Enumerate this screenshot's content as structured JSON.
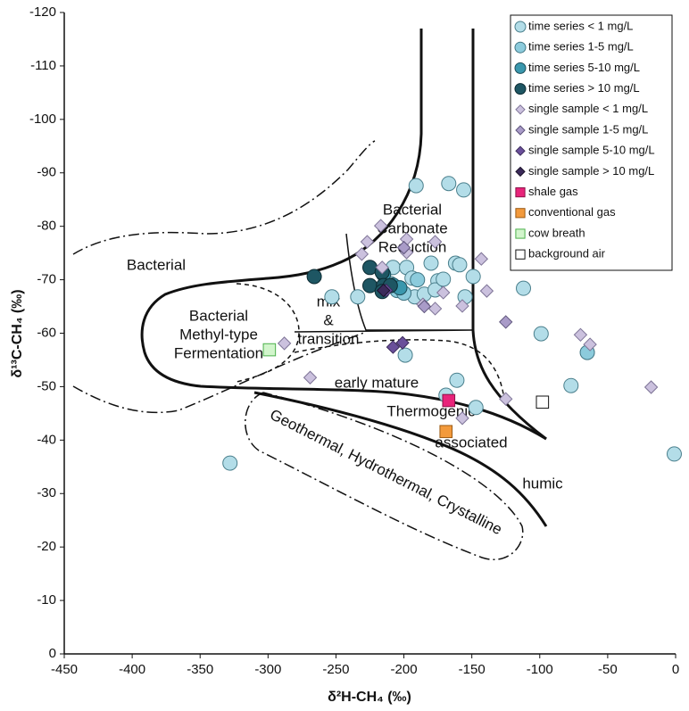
{
  "chart_data": {
    "type": "scatter",
    "x_label": "δ²H-CH₄ (‰)",
    "y_label": "δ¹³C-CH₄ (‰)",
    "xlim": [
      -450,
      0
    ],
    "xticks": [
      -450,
      -400,
      -350,
      -300,
      -250,
      -200,
      -150,
      -100,
      -50,
      0
    ],
    "ylim": [
      0,
      -120
    ],
    "yticks": [
      0,
      -10,
      -20,
      -30,
      -40,
      -50,
      -60,
      -70,
      -80,
      -90,
      -100,
      -110,
      -120
    ],
    "legend": "upper right",
    "annotations": [
      [
        "Bacterial"
      ],
      [
        "Bacterial",
        "Methyl-type",
        "Fermentation"
      ],
      [
        "mix",
        "&",
        "transition"
      ],
      [
        "Bacterial",
        "Carbonate",
        "Reduction"
      ],
      [
        "early mature"
      ],
      [
        "Thermogenic"
      ],
      [
        "associated"
      ],
      [
        "humic"
      ],
      [
        "Geothermal, Hydrothermal, Crystalline"
      ]
    ],
    "series": [
      {
        "name": "time series < 1 mg/L",
        "marker": "circle",
        "color": "#b3dde8",
        "stroke": "#4a7f8c",
        "x": [
          -191,
          -167,
          -156,
          -253,
          -234,
          -208,
          -198,
          -194,
          -210,
          -192,
          -185,
          -180,
          -175,
          -177,
          -171,
          -162,
          -159,
          -155,
          -149,
          -112,
          -199,
          -161,
          -169,
          -147,
          -99,
          -77,
          -1,
          -328
        ],
        "y": [
          -87.6,
          -88,
          -86.8,
          -66.8,
          -66.8,
          -72.3,
          -72.3,
          -70.3,
          -69.3,
          -66.8,
          -67.3,
          -73.1,
          -69.8,
          -68.1,
          -70.1,
          -73.1,
          -72.8,
          -66.8,
          -70.6,
          -68.4,
          -55.9,
          -51.2,
          -48.4,
          -46.1,
          -59.9,
          -50.2,
          -37.4,
          -35.7
        ]
      },
      {
        "name": "time series 1-5 mg/L",
        "marker": "circle",
        "color": "#8ccbdc",
        "stroke": "#3f7482",
        "x": [
          -205,
          -200,
          -190,
          -65
        ],
        "y": [
          -68,
          -67.5,
          -70,
          -56.4
        ]
      },
      {
        "name": "time series 5-10 mg/L",
        "marker": "circle",
        "color": "#3a97ad",
        "stroke": "#1d4d59",
        "x": [
          -208,
          -203,
          -215
        ],
        "y": [
          -69,
          -68.5,
          -71
        ]
      },
      {
        "name": "time series > 10 mg/L",
        "marker": "circle",
        "color": "#1e5663",
        "stroke": "#0b2a31",
        "x": [
          -266,
          -225,
          -225,
          -216,
          -215,
          -210,
          -216
        ],
        "y": [
          -70.6,
          -72.3,
          -68.9,
          -71.4,
          -68.9,
          -68.9,
          -67.8
        ]
      },
      {
        "name": "single sample < 1 mg/L",
        "marker": "diamond",
        "color": "#cbc1de",
        "stroke": "#7d7396",
        "x": [
          -227,
          -217,
          -198,
          -177,
          -231,
          -198,
          -216,
          -143,
          -139,
          -186,
          -177,
          -157,
          -171,
          -70,
          -63,
          -125,
          -18,
          -288,
          -269,
          -157
        ],
        "y": [
          -77.1,
          -80.1,
          -77.6,
          -77.1,
          -74.8,
          -75.1,
          -72.3,
          -73.9,
          -67.9,
          -65.4,
          -64.6,
          -65.1,
          -67.6,
          -59.7,
          -57.9,
          -47.7,
          -49.9,
          -58.1,
          -51.7,
          -44.1
        ]
      },
      {
        "name": "single sample 1-5 mg/L",
        "marker": "diamond",
        "color": "#a99bc8",
        "stroke": "#5f557c",
        "x": [
          -200,
          -185,
          -125
        ],
        "y": [
          -76,
          -65,
          -62.1
        ]
      },
      {
        "name": "single sample 5-10 mg/L",
        "marker": "diamond",
        "color": "#6a4f9a",
        "stroke": "#3b2a5a",
        "x": [
          -208,
          -201,
          -213
        ],
        "y": [
          -57.4,
          -58.2,
          -68
        ]
      },
      {
        "name": "single sample > 10 mg/L",
        "marker": "diamond",
        "color": "#3b2a5a",
        "stroke": "#1a1128",
        "x": [
          -215
        ],
        "y": [
          -68
        ]
      },
      {
        "name": "shale gas",
        "marker": "square",
        "color": "#e8247a",
        "stroke": "#8a1248",
        "x": [
          -167
        ],
        "y": [
          -47.4
        ]
      },
      {
        "name": "conventional gas",
        "marker": "square",
        "color": "#f39a3c",
        "stroke": "#9a5a14",
        "x": [
          -169
        ],
        "y": [
          -41.6
        ]
      },
      {
        "name": "cow breath",
        "marker": "square",
        "color": "#d2f5cc",
        "stroke": "#4bb04b",
        "x": [
          -299
        ],
        "y": [
          -56.9
        ]
      },
      {
        "name": "background air",
        "marker": "square",
        "color": "#ffffff",
        "stroke": "#111111",
        "x": [
          -98
        ],
        "y": [
          -47.1
        ]
      }
    ]
  }
}
